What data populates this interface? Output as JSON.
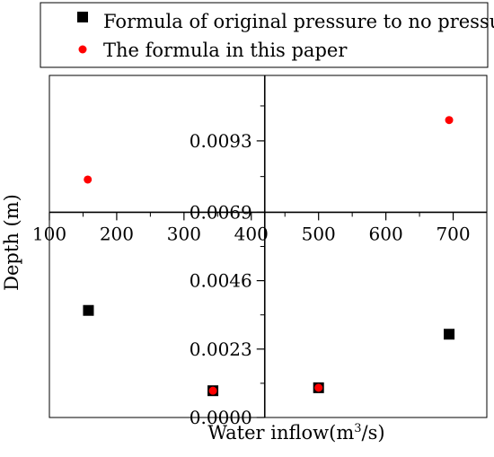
{
  "chart_data": {
    "type": "scatter",
    "xlabel": "Water inflow(m",
    "xlabel_sup": "3",
    "xlabel_tail": "/s)",
    "ylabel": "Depth (m)",
    "xlim": [
      100,
      750
    ],
    "ylim": [
      0.0,
      0.0115
    ],
    "x_crosses_y_at": 0.0069,
    "y_crosses_x_at": 420,
    "x_ticks": [
      100,
      200,
      300,
      400,
      500,
      600,
      700
    ],
    "y_ticks": [
      0.0,
      0.0023,
      0.0046,
      0.0069,
      0.0093
    ],
    "y_tick_labels": [
      "0.0000",
      "0.0023",
      "0.0046",
      "0.0069",
      "0.0093"
    ],
    "grid": false,
    "legend_position": "top",
    "series": [
      {
        "name": "Formula of original pressure to no pressure",
        "marker": "square",
        "color": "#000000",
        "x": [
          158,
          343,
          500,
          694
        ],
        "y": [
          0.0036,
          0.0009,
          0.001,
          0.0028
        ]
      },
      {
        "name": "The formula in this paper",
        "marker": "circle",
        "color": "#ff0000",
        "x": [
          157,
          343,
          500,
          694
        ],
        "y": [
          0.008,
          0.0009,
          0.001,
          0.01
        ]
      }
    ]
  }
}
